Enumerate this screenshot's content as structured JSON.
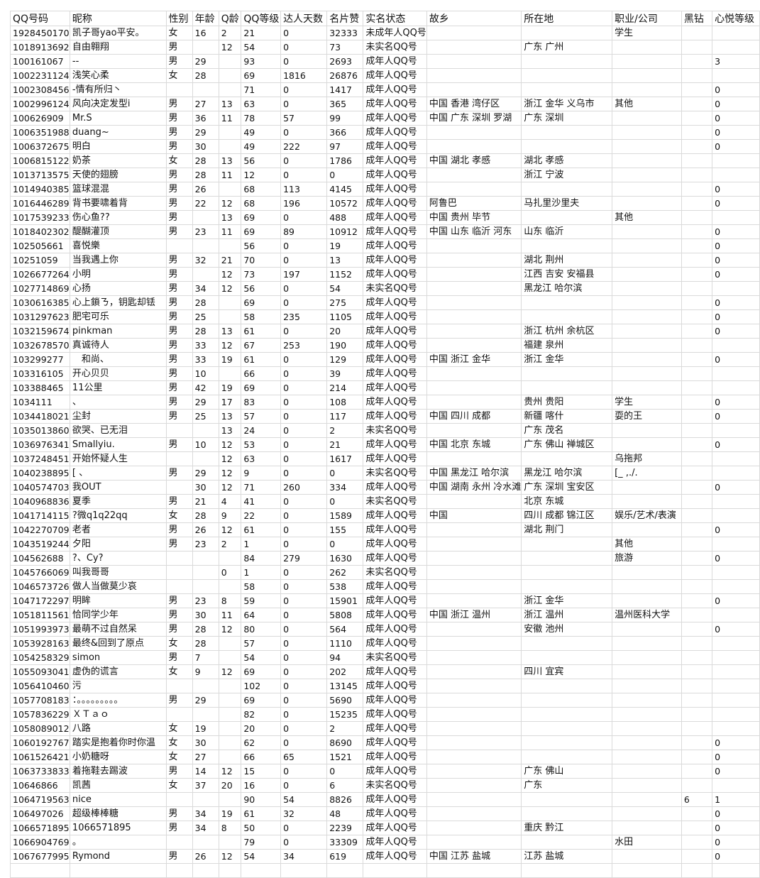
{
  "columns": [
    "QQ号码",
    "昵称",
    "性别",
    "年龄",
    "Q龄",
    "QQ等级",
    "达人天数",
    "名片赞",
    "实名状态",
    "故乡",
    "所在地",
    "职业/公司",
    "黑钻",
    "心悦等级"
  ],
  "rows": [
    [
      "1928450170",
      "凯子哥yao平安。",
      "女",
      "16",
      "2",
      "21",
      "0",
      "32333",
      "未成年人QQ号",
      "",
      "",
      "学生",
      "",
      ""
    ],
    [
      "1018913692",
      "自由翱翔",
      "男",
      "",
      "12",
      "54",
      "0",
      "73",
      "未实名QQ号",
      "",
      "广东 广州",
      "",
      "",
      ""
    ],
    [
      "100161067",
      "--",
      "男",
      "29",
      "",
      "93",
      "0",
      "2693",
      "成年人QQ号",
      "",
      "",
      "",
      "",
      "3"
    ],
    [
      "1002231124",
      "浅笑心柔",
      "女",
      "28",
      "",
      "69",
      "1816",
      "26876",
      "成年人QQ号",
      "",
      "",
      "",
      "",
      ""
    ],
    [
      "1002308456",
      "-情有所归丶",
      "",
      "",
      "",
      "71",
      "0",
      "1417",
      "成年人QQ号",
      "",
      "",
      "",
      "",
      "0"
    ],
    [
      "1002996124",
      "风向决定发型i",
      "男",
      "27",
      "13",
      "63",
      "0",
      "365",
      "成年人QQ号",
      "中国 香港 湾仔区",
      "浙江 金华 义乌市",
      "其他",
      "",
      "0"
    ],
    [
      "100626909",
      "Mr.S",
      "男",
      "36",
      "11",
      "78",
      "57",
      "99",
      "成年人QQ号",
      "中国 广东 深圳 罗湖",
      "广东 深圳",
      "",
      "",
      "0"
    ],
    [
      "1006351988",
      "duang~",
      "男",
      "29",
      "",
      "49",
      "0",
      "366",
      "成年人QQ号",
      "",
      "",
      "",
      "",
      "0"
    ],
    [
      "1006372675",
      "明白",
      "男",
      "30",
      "",
      "49",
      "222",
      "97",
      "成年人QQ号",
      "",
      "",
      "",
      "",
      "0"
    ],
    [
      "1006815122",
      "奶茶",
      "女",
      "28",
      "13",
      "56",
      "0",
      "1786",
      "成年人QQ号",
      "中国 湖北 孝感",
      "湖北 孝感",
      "",
      "",
      ""
    ],
    [
      "1013713575",
      "天使的翅膀",
      "男",
      "28",
      "11",
      "12",
      "0",
      "0",
      "成年人QQ号",
      "",
      "浙江 宁波",
      "",
      "",
      ""
    ],
    [
      "1014940385",
      "篮球混混",
      "男",
      "26",
      "",
      "68",
      "113",
      "4145",
      "成年人QQ号",
      "",
      "",
      "",
      "",
      "0"
    ],
    [
      "1016446289",
      "背书要啸着背",
      "男",
      "22",
      "12",
      "68",
      "196",
      "10572",
      "成年人QQ号",
      "阿鲁巴",
      "马扎里沙里夫",
      "",
      "",
      "0"
    ],
    [
      "1017539233",
      "伤心鱼??",
      "男",
      "",
      "13",
      "69",
      "0",
      "488",
      "成年人QQ号",
      "中国 贵州 毕节",
      "",
      "其他",
      "",
      ""
    ],
    [
      "1018402302",
      "醍醐灌顶",
      "男",
      "23",
      "11",
      "69",
      "89",
      "10912",
      "成年人QQ号",
      "中国 山东 临沂 河东",
      "山东 临沂",
      "",
      "",
      "0"
    ],
    [
      "102505661",
      "喜悦樂",
      "",
      "",
      "",
      "56",
      "0",
      "19",
      "成年人QQ号",
      "",
      "",
      "",
      "",
      "0"
    ],
    [
      "10251059",
      "当我遇上你",
      "男",
      "32",
      "21",
      "70",
      "0",
      "13",
      "成年人QQ号",
      "",
      "湖北 荆州",
      "",
      "",
      "0"
    ],
    [
      "1026677264",
      "小明",
      "男",
      "",
      "12",
      "73",
      "197",
      "1152",
      "成年人QQ号",
      "",
      "江西 吉安 安福县",
      "",
      "",
      "0"
    ],
    [
      "1027714869",
      "心扬",
      "男",
      "34",
      "12",
      "56",
      "0",
      "54",
      "未实名QQ号",
      "",
      "黑龙江 哈尔滨",
      "",
      "",
      ""
    ],
    [
      "1030616385",
      "心上鎖ㄋ，钥匙却铥",
      "男",
      "28",
      "",
      "69",
      "0",
      "275",
      "成年人QQ号",
      "",
      "",
      "",
      "",
      "0"
    ],
    [
      "1031297623",
      "肥宅可乐",
      "男",
      "25",
      "",
      "58",
      "235",
      "1105",
      "成年人QQ号",
      "",
      "",
      "",
      "",
      "0"
    ],
    [
      "1032159674",
      "pinkman",
      "男",
      "28",
      "13",
      "61",
      "0",
      "20",
      "成年人QQ号",
      "",
      "浙江 杭州 余杭区",
      "",
      "",
      "0"
    ],
    [
      "1032678570",
      "真诚待人",
      "男",
      "33",
      "12",
      "67",
      "253",
      "190",
      "成年人QQ号",
      "",
      "福建 泉州",
      "",
      "",
      ""
    ],
    [
      "103299277",
      "　和尚、",
      "男",
      "33",
      "19",
      "61",
      "0",
      "129",
      "成年人QQ号",
      "中国 浙江 金华",
      "浙江 金华",
      "",
      "",
      "0"
    ],
    [
      "103316105",
      "开心贝贝",
      "男",
      "10",
      "",
      "66",
      "0",
      "39",
      "成年人QQ号",
      "",
      "",
      "",
      "",
      ""
    ],
    [
      "103388465",
      "11公里",
      "男",
      "42",
      "19",
      "69",
      "0",
      "214",
      "成年人QQ号",
      "",
      "",
      "",
      "",
      ""
    ],
    [
      "1034111",
      "、",
      "男",
      "29",
      "17",
      "83",
      "0",
      "108",
      "成年人QQ号",
      "",
      "贵州 贵阳",
      "学生",
      "",
      "0"
    ],
    [
      "1034418021",
      "尘封",
      "男",
      "25",
      "13",
      "57",
      "0",
      "117",
      "成年人QQ号",
      "中国 四川 成都",
      "新疆 喀什",
      "耍的王",
      "",
      "0"
    ],
    [
      "1035013860",
      "欲哭、已无泪",
      "",
      "",
      "13",
      "24",
      "0",
      "2",
      "未实名QQ号",
      "",
      "广东 茂名",
      "",
      "",
      ""
    ],
    [
      "1036976341",
      " Smallyiu.",
      "男",
      "10",
      "12",
      "53",
      "0",
      "21",
      "成年人QQ号",
      "中国 北京 东城",
      "广东 佛山 禅城区",
      "",
      "",
      "0"
    ],
    [
      "1037248451",
      "开始怀疑人生",
      "",
      "",
      "12",
      "63",
      "0",
      "1617",
      "成年人QQ号",
      "",
      "",
      "乌拖邦",
      "",
      ""
    ],
    [
      "1040238895",
      "  [ 、",
      "男",
      "29",
      "12",
      "9",
      "0",
      "0",
      "未实名QQ号",
      "中国 黑龙江 哈尔滨",
      "黑龙江 哈尔滨",
      "[_ ,./.",
      "",
      ""
    ],
    [
      "1040574703",
      "我OUT",
      "",
      "30",
      "12",
      "71",
      "260",
      "334",
      "成年人QQ号",
      "中国 湖南 永州 冷水滩",
      "广东 深圳 宝安区",
      "",
      "",
      "0"
    ],
    [
      "1040968836",
      "夏季",
      "男",
      "21",
      "4",
      "41",
      "0",
      "0",
      "未实名QQ号",
      "",
      "北京 东城",
      "",
      "",
      ""
    ],
    [
      "1041714115",
      "?微q1q22qq",
      "女",
      "28",
      "9",
      "22",
      "0",
      "1589",
      "成年人QQ号",
      "中国",
      "四川 成都 锦江区",
      "娱乐/艺术/表演",
      "",
      ""
    ],
    [
      "1042270709",
      "老者",
      "男",
      "26",
      "12",
      "61",
      "0",
      "155",
      "成年人QQ号",
      "",
      "湖北 荆门",
      "",
      "",
      "0"
    ],
    [
      "1043519244",
      "夕阳",
      "男",
      "23",
      "2",
      "1",
      "0",
      "0",
      "成年人QQ号",
      "",
      "",
      "其他",
      "",
      ""
    ],
    [
      "104562688",
      "?、Cy?",
      "",
      "",
      "",
      "84",
      "279",
      "1630",
      "成年人QQ号",
      "",
      "",
      "旅游",
      "",
      "0"
    ],
    [
      "1045766069",
      "叫我哥哥",
      "",
      "",
      "0",
      "1",
      "0",
      "262",
      "未实名QQ号",
      "",
      "",
      "",
      "",
      ""
    ],
    [
      "1046573726",
      "做人当做莫少哀",
      "",
      "",
      "",
      "58",
      "0",
      "538",
      "成年人QQ号",
      "",
      "",
      "",
      "",
      ""
    ],
    [
      "1047172297",
      "明眸",
      "男",
      "23",
      "8",
      "59",
      "0",
      "15901",
      "成年人QQ号",
      "",
      "浙江 金华",
      "",
      "",
      "0"
    ],
    [
      "1051811561",
      "恰同学少年",
      "男",
      "30",
      "11",
      "64",
      "0",
      "5808",
      "成年人QQ号",
      "中国 浙江 温州",
      "浙江 温州",
      "温州医科大学",
      "",
      ""
    ],
    [
      "1051993973",
      "最萌不过自然呆",
      "男",
      "28",
      "12",
      "80",
      "0",
      "564",
      "成年人QQ号",
      "",
      "安徽 池州",
      "",
      "",
      "0"
    ],
    [
      "1053928163",
      "最终&回到了原点",
      "女",
      "28",
      "",
      "57",
      "0",
      "1110",
      "成年人QQ号",
      "",
      "",
      "",
      "",
      ""
    ],
    [
      "1054258329",
      "simon",
      "男",
      "7",
      "",
      "54",
      "0",
      "94",
      "未实名QQ号",
      "",
      "",
      "",
      "",
      ""
    ],
    [
      "1055093041",
      "虚伪的谎言",
      "女",
      "9",
      "12",
      "69",
      "0",
      "202",
      "成年人QQ号",
      "",
      "四川 宜宾",
      "",
      "",
      ""
    ],
    [
      "1056410460",
      "污",
      "",
      "",
      "",
      "102",
      "0",
      "13145",
      "成年人QQ号",
      "",
      "",
      "",
      "",
      ""
    ],
    [
      "1057708183",
      "：。。。。。。。。。",
      "男",
      "29",
      "",
      "69",
      "0",
      "5690",
      "成年人QQ号",
      "",
      "",
      "",
      "",
      ""
    ],
    [
      "1057836229",
      "ＸＴａｏ",
      "",
      "",
      "",
      "82",
      "0",
      "15235",
      "成年人QQ号",
      "",
      "",
      "",
      "",
      ""
    ],
    [
      "1058089012",
      "八路",
      "女",
      "19",
      "",
      "20",
      "0",
      "2",
      "成年人QQ号",
      "",
      "",
      "",
      "",
      ""
    ],
    [
      "1060192767",
      "踏实是抱着你时你温",
      "女",
      "30",
      "",
      "62",
      "0",
      "8690",
      "成年人QQ号",
      "",
      "",
      "",
      "",
      "0"
    ],
    [
      "1061526421",
      "小奶糖呀",
      "女",
      "27",
      "",
      "66",
      "65",
      "1521",
      "成年人QQ号",
      "",
      "",
      "",
      "",
      "0"
    ],
    [
      "1063733833",
      "着拖鞋去踢波",
      "男",
      "14",
      "12",
      "15",
      "0",
      "0",
      "成年人QQ号",
      "",
      "广东 佛山",
      "",
      "",
      "0"
    ],
    [
      "10646866",
      "凯茜",
      "女",
      "37",
      "20",
      "16",
      "0",
      "6",
      "未实名QQ号",
      "",
      "广东",
      "",
      "",
      ""
    ],
    [
      "1064719563",
      "nice",
      "",
      "",
      "",
      "90",
      "54",
      "8826",
      "成年人QQ号",
      "",
      "",
      "",
      "6",
      "1"
    ],
    [
      "106497026",
      "超级棒棒糖",
      "男",
      "34",
      "19",
      "61",
      "32",
      "48",
      "成年人QQ号",
      "",
      "",
      "",
      "",
      "0"
    ],
    [
      "1066571895",
      "1066571895",
      "男",
      "34",
      "8",
      "50",
      "0",
      "2239",
      "成年人QQ号",
      "",
      "重庆 黔江",
      "",
      "",
      "0"
    ],
    [
      "1066904769",
      "。",
      "",
      "",
      "",
      "79",
      "0",
      "33309",
      "成年人QQ号",
      "",
      "",
      "水田",
      "",
      "0"
    ],
    [
      "1067677995",
      "Rymond",
      "男",
      "26",
      "12",
      "54",
      "34",
      "619",
      "成年人QQ号",
      "中国 江苏 盐城",
      "江苏 盐城",
      "",
      "",
      "0"
    ]
  ]
}
